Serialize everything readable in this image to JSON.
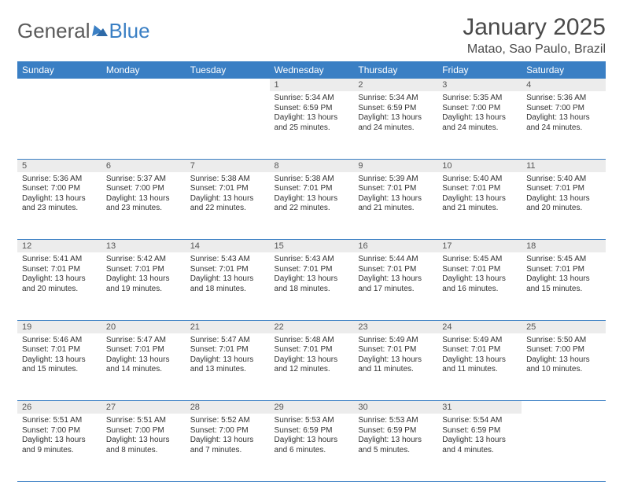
{
  "brand": {
    "text1": "General",
    "text2": "Blue"
  },
  "title": "January 2025",
  "location": "Matao, Sao Paulo, Brazil",
  "colors": {
    "header_bg": "#3a7fc4",
    "header_fg": "#ffffff",
    "daynum_bg": "#ececec",
    "rule": "#3a7fc4",
    "text": "#333333"
  },
  "day_headers": [
    "Sunday",
    "Monday",
    "Tuesday",
    "Wednesday",
    "Thursday",
    "Friday",
    "Saturday"
  ],
  "weeks": [
    [
      null,
      null,
      null,
      {
        "n": "1",
        "sr": "5:34 AM",
        "ss": "6:59 PM",
        "dl": "13 hours and 25 minutes."
      },
      {
        "n": "2",
        "sr": "5:34 AM",
        "ss": "6:59 PM",
        "dl": "13 hours and 24 minutes."
      },
      {
        "n": "3",
        "sr": "5:35 AM",
        "ss": "7:00 PM",
        "dl": "13 hours and 24 minutes."
      },
      {
        "n": "4",
        "sr": "5:36 AM",
        "ss": "7:00 PM",
        "dl": "13 hours and 24 minutes."
      }
    ],
    [
      {
        "n": "5",
        "sr": "5:36 AM",
        "ss": "7:00 PM",
        "dl": "13 hours and 23 minutes."
      },
      {
        "n": "6",
        "sr": "5:37 AM",
        "ss": "7:00 PM",
        "dl": "13 hours and 23 minutes."
      },
      {
        "n": "7",
        "sr": "5:38 AM",
        "ss": "7:01 PM",
        "dl": "13 hours and 22 minutes."
      },
      {
        "n": "8",
        "sr": "5:38 AM",
        "ss": "7:01 PM",
        "dl": "13 hours and 22 minutes."
      },
      {
        "n": "9",
        "sr": "5:39 AM",
        "ss": "7:01 PM",
        "dl": "13 hours and 21 minutes."
      },
      {
        "n": "10",
        "sr": "5:40 AM",
        "ss": "7:01 PM",
        "dl": "13 hours and 21 minutes."
      },
      {
        "n": "11",
        "sr": "5:40 AM",
        "ss": "7:01 PM",
        "dl": "13 hours and 20 minutes."
      }
    ],
    [
      {
        "n": "12",
        "sr": "5:41 AM",
        "ss": "7:01 PM",
        "dl": "13 hours and 20 minutes."
      },
      {
        "n": "13",
        "sr": "5:42 AM",
        "ss": "7:01 PM",
        "dl": "13 hours and 19 minutes."
      },
      {
        "n": "14",
        "sr": "5:43 AM",
        "ss": "7:01 PM",
        "dl": "13 hours and 18 minutes."
      },
      {
        "n": "15",
        "sr": "5:43 AM",
        "ss": "7:01 PM",
        "dl": "13 hours and 18 minutes."
      },
      {
        "n": "16",
        "sr": "5:44 AM",
        "ss": "7:01 PM",
        "dl": "13 hours and 17 minutes."
      },
      {
        "n": "17",
        "sr": "5:45 AM",
        "ss": "7:01 PM",
        "dl": "13 hours and 16 minutes."
      },
      {
        "n": "18",
        "sr": "5:45 AM",
        "ss": "7:01 PM",
        "dl": "13 hours and 15 minutes."
      }
    ],
    [
      {
        "n": "19",
        "sr": "5:46 AM",
        "ss": "7:01 PM",
        "dl": "13 hours and 15 minutes."
      },
      {
        "n": "20",
        "sr": "5:47 AM",
        "ss": "7:01 PM",
        "dl": "13 hours and 14 minutes."
      },
      {
        "n": "21",
        "sr": "5:47 AM",
        "ss": "7:01 PM",
        "dl": "13 hours and 13 minutes."
      },
      {
        "n": "22",
        "sr": "5:48 AM",
        "ss": "7:01 PM",
        "dl": "13 hours and 12 minutes."
      },
      {
        "n": "23",
        "sr": "5:49 AM",
        "ss": "7:01 PM",
        "dl": "13 hours and 11 minutes."
      },
      {
        "n": "24",
        "sr": "5:49 AM",
        "ss": "7:01 PM",
        "dl": "13 hours and 11 minutes."
      },
      {
        "n": "25",
        "sr": "5:50 AM",
        "ss": "7:00 PM",
        "dl": "13 hours and 10 minutes."
      }
    ],
    [
      {
        "n": "26",
        "sr": "5:51 AM",
        "ss": "7:00 PM",
        "dl": "13 hours and 9 minutes."
      },
      {
        "n": "27",
        "sr": "5:51 AM",
        "ss": "7:00 PM",
        "dl": "13 hours and 8 minutes."
      },
      {
        "n": "28",
        "sr": "5:52 AM",
        "ss": "7:00 PM",
        "dl": "13 hours and 7 minutes."
      },
      {
        "n": "29",
        "sr": "5:53 AM",
        "ss": "6:59 PM",
        "dl": "13 hours and 6 minutes."
      },
      {
        "n": "30",
        "sr": "5:53 AM",
        "ss": "6:59 PM",
        "dl": "13 hours and 5 minutes."
      },
      {
        "n": "31",
        "sr": "5:54 AM",
        "ss": "6:59 PM",
        "dl": "13 hours and 4 minutes."
      },
      null
    ]
  ],
  "labels": {
    "sunrise": "Sunrise: ",
    "sunset": "Sunset: ",
    "daylight": "Daylight: "
  }
}
